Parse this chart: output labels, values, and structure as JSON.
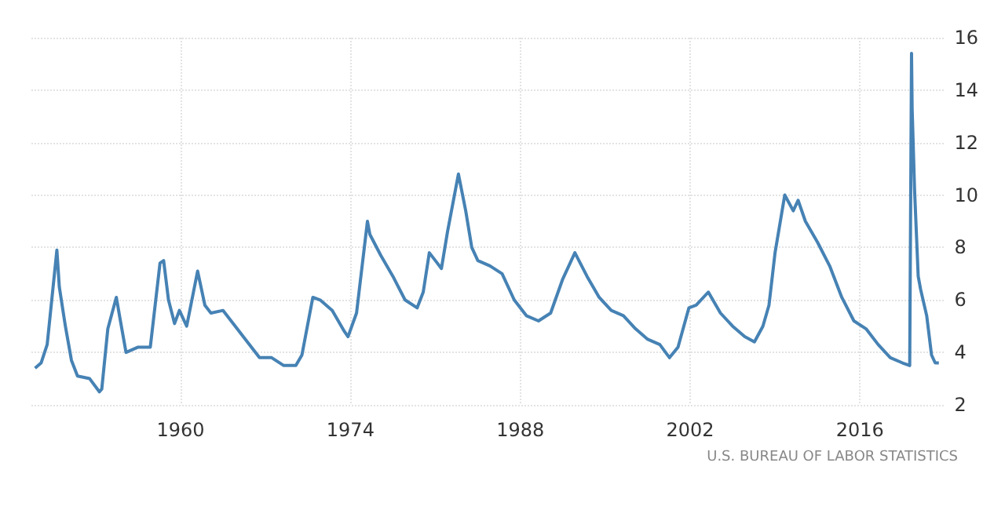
{
  "chart_data": {
    "type": "line",
    "x": [
      1948.0,
      1948.5,
      1949.0,
      1949.8,
      1950.0,
      1950.5,
      1951.0,
      1951.5,
      1952.5,
      1953.3,
      1953.5,
      1954.0,
      1954.7,
      1955.0,
      1955.5,
      1956.5,
      1957.5,
      1958.3,
      1958.6,
      1959.0,
      1959.5,
      1959.9,
      1960.5,
      1961.4,
      1962.0,
      1962.5,
      1963.5,
      1964.5,
      1965.5,
      1966.5,
      1967.5,
      1968.5,
      1969.5,
      1970.0,
      1970.9,
      1971.5,
      1972.5,
      1973.5,
      1973.8,
      1974.5,
      1975.4,
      1975.6,
      1976.5,
      1977.5,
      1978.5,
      1979.5,
      1980.0,
      1980.5,
      1981.0,
      1981.5,
      1982.0,
      1982.9,
      1983.5,
      1984.0,
      1984.5,
      1985.5,
      1986.5,
      1987.5,
      1988.5,
      1989.5,
      1990.5,
      1991.5,
      1992.5,
      1993.5,
      1994.5,
      1995.5,
      1996.5,
      1997.5,
      1998.5,
      1999.5,
      2000.3,
      2001.0,
      2001.9,
      2002.5,
      2003.5,
      2004.5,
      2005.5,
      2006.5,
      2007.3,
      2008.0,
      2008.5,
      2009.0,
      2009.8,
      2010.5,
      2010.9,
      2011.5,
      2012.5,
      2013.5,
      2014.5,
      2015.5,
      2016.5,
      2017.5,
      2018.5,
      2019.5,
      2020.1,
      2020.25,
      2020.3,
      2020.5,
      2020.8,
      2021.0,
      2021.5,
      2021.9,
      2022.2,
      2022.5
    ],
    "series": [
      {
        "color": "#4682b4",
        "values": [
          3.4,
          3.6,
          4.3,
          7.9,
          6.5,
          5.0,
          3.7,
          3.1,
          3.0,
          2.5,
          2.6,
          4.9,
          6.1,
          5.3,
          4.0,
          4.2,
          4.2,
          7.4,
          7.5,
          6.0,
          5.1,
          5.6,
          5.0,
          7.1,
          5.8,
          5.5,
          5.6,
          5.0,
          4.4,
          3.8,
          3.8,
          3.5,
          3.5,
          3.9,
          6.1,
          6.0,
          5.6,
          4.8,
          4.6,
          5.5,
          9.0,
          8.5,
          7.7,
          6.9,
          6.0,
          5.7,
          6.3,
          7.8,
          7.5,
          7.2,
          8.6,
          10.8,
          9.4,
          8.0,
          7.5,
          7.3,
          7.0,
          6.0,
          5.4,
          5.2,
          5.5,
          6.8,
          7.8,
          6.9,
          6.1,
          5.6,
          5.4,
          4.9,
          4.5,
          4.3,
          3.8,
          4.2,
          5.7,
          5.8,
          6.3,
          5.5,
          5.0,
          4.6,
          4.4,
          5.0,
          5.8,
          7.8,
          10.0,
          9.4,
          9.8,
          9.0,
          8.2,
          7.3,
          6.1,
          5.2,
          4.9,
          4.3,
          3.8,
          3.6,
          3.5,
          15.4,
          13.3,
          10.2,
          6.9,
          6.4,
          5.4,
          3.9,
          3.6,
          3.6
        ]
      }
    ],
    "xlim": [
      1947.7,
      2023
    ],
    "xticks": [
      1960,
      1974,
      1988,
      2002,
      2016
    ],
    "ylim": [
      2,
      16
    ],
    "yticks": [
      2,
      4,
      6,
      8,
      10,
      12,
      14,
      16
    ],
    "grid": true,
    "marker": "none",
    "line_style": "solid",
    "annotations": [
      "U.S. BUREAU OF LABOR STATISTICS"
    ]
  }
}
